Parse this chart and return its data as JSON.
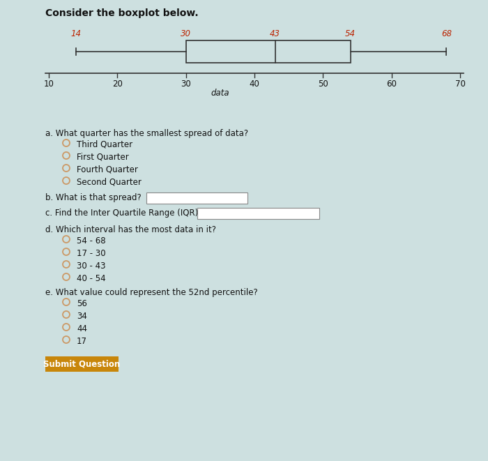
{
  "title": "Consider the boxplot below.",
  "boxplot": {
    "min": 14,
    "q1": 30,
    "median": 43,
    "q3": 54,
    "max": 68
  },
  "axis_min": 10,
  "axis_max": 70,
  "axis_ticks": [
    10,
    20,
    30,
    40,
    50,
    60,
    70
  ],
  "xlabel": "data",
  "label_color": "#bb2200",
  "box_color": "#333333",
  "bg_color": "#cde0e0",
  "question_a": "a. What quarter has the smallest spread of data?",
  "options_a": [
    "Third Quarter",
    "First Quarter",
    "Fourth Quarter",
    "Second Quarter"
  ],
  "question_b": "b. What is that spread?",
  "question_c": "c. Find the Inter Quartile Range (IQR):",
  "question_d": "d. Which interval has the most data in it?",
  "options_d": [
    "54 - 68",
    "17 - 30",
    "30 - 43",
    "40 - 54"
  ],
  "question_e": "e. What value could represent the 52nd percentile?",
  "options_e": [
    "56",
    "34",
    "44",
    "17"
  ],
  "button_text": "Submit Question",
  "button_color": "#c8860a",
  "button_text_color": "#ffffff",
  "text_color": "#111111",
  "radio_color": "#cc9966",
  "title_fontsize": 10,
  "text_fontsize": 8.5,
  "bp_label_fontsize": 8.5,
  "bp_tick_fontsize": 8.5
}
